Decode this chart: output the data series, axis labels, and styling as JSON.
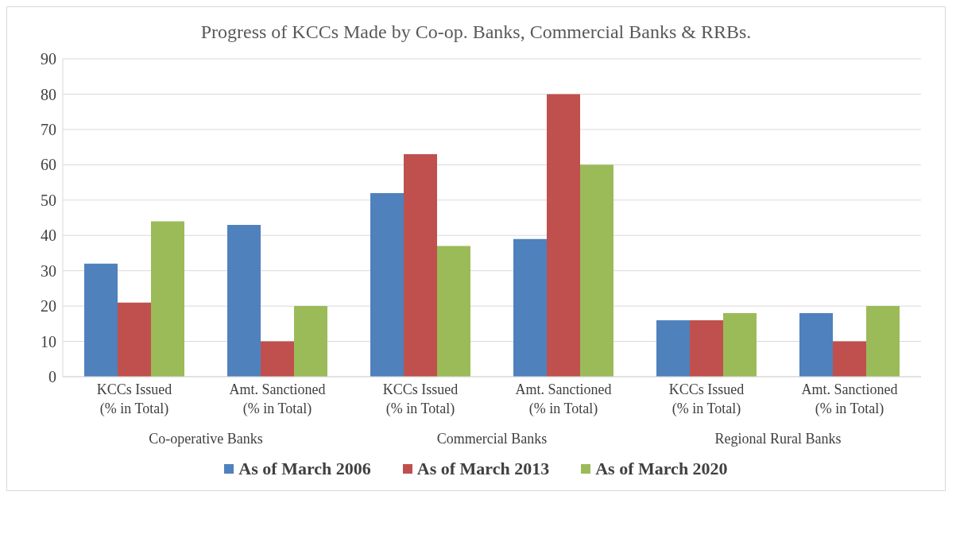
{
  "chart_data": {
    "type": "bar",
    "title": "Progress of KCCs Made by Co-op. Banks, Commercial Banks & RRBs.",
    "categories": [
      "KCCs Issued\n(% in Total)",
      "Amt. Sanctioned\n(% in Total)",
      "KCCs Issued\n(% in Total)",
      "Amt. Sanctioned\n(% in Total)",
      "KCCs Issued\n(% in Total)",
      "Amt. Sanctioned\n(% in Total)"
    ],
    "series": [
      {
        "name": "As of March 2006",
        "color": "#4f81bd",
        "values": [
          32,
          43,
          52,
          39,
          16,
          18
        ]
      },
      {
        "name": "As of March 2013",
        "color": "#c0504d",
        "values": [
          21,
          10,
          63,
          80,
          16,
          10
        ]
      },
      {
        "name": "As of March 2020",
        "color": "#9bbb59",
        "values": [
          44,
          20,
          37,
          60,
          18,
          20
        ]
      }
    ],
    "ylim": [
      0,
      90
    ],
    "yticks": [
      0,
      10,
      20,
      30,
      40,
      50,
      60,
      70,
      80,
      90
    ],
    "grid": "y",
    "legend": "bottom",
    "annotations": [
      "Co-operative Banks",
      "Commercial Banks",
      "Regional Rural Banks"
    ]
  }
}
